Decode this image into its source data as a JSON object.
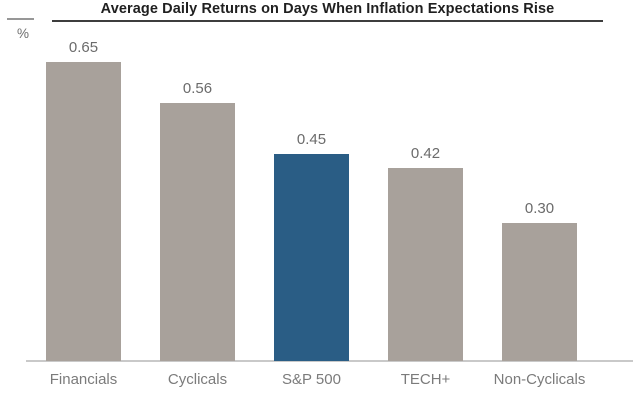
{
  "header": {
    "unit_label": "%"
  },
  "chart_data": {
    "type": "bar",
    "title": "Average Daily Returns on Days When Inflation Expectations Rise",
    "categories": [
      "Financials",
      "Cyclicals",
      "S&P 500",
      "TECH+",
      "Non-Cyclicals"
    ],
    "values": [
      0.65,
      0.56,
      0.45,
      0.42,
      0.3
    ],
    "value_labels": [
      "0.65",
      "0.56",
      "0.45",
      "0.42",
      "0.30"
    ],
    "xlabel": "",
    "ylabel": "%",
    "ylim": [
      0,
      0.75
    ],
    "grid": false,
    "legend": "none",
    "highlight_index": 2,
    "colors": {
      "bar_default": "#a8a19b",
      "bar_highlight": "#2a5d85",
      "axis_line": "#c9c9c9",
      "value_label_text": "#6b6b6b",
      "category_label_text": "#7b7b7b",
      "title_text": "#1f1f1f",
      "title_underline": "#3d3d3d"
    }
  }
}
